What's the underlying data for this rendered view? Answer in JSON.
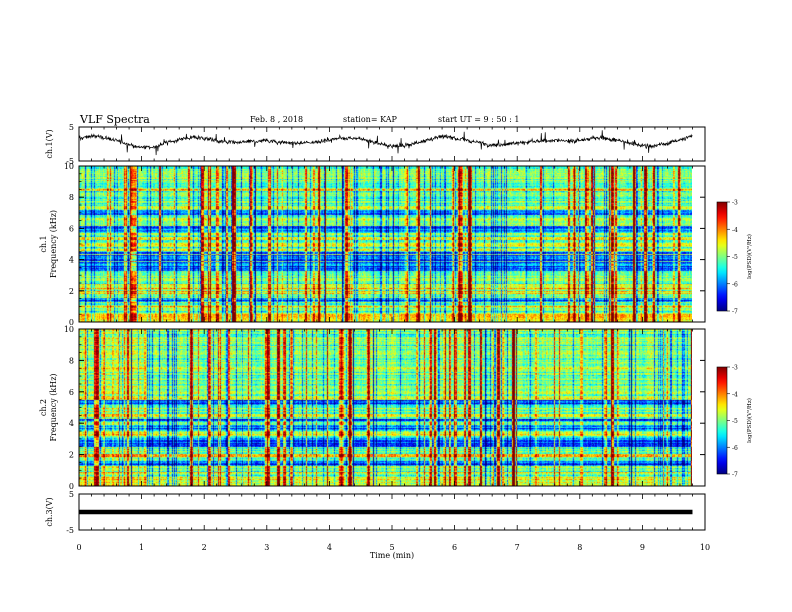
{
  "header": {
    "title": "VLF Spectra",
    "date": "Feb. 8 , 2018",
    "station": "station= KAP",
    "start": "start  UT =   9 : 50 : 1"
  },
  "chart_data": [
    {
      "type": "line",
      "name": "ch1-waveform",
      "ylabel": "ch.1(V)",
      "ylim": [
        -5,
        5
      ],
      "yticks": [
        "5",
        "-5"
      ],
      "xlim": [
        0,
        10
      ],
      "description_values": {
        "mean": 0.5,
        "amplitude": 1.8,
        "slow_cycles": 6
      }
    },
    {
      "type": "heatmap",
      "name": "ch1-spectrogram",
      "ylabel_top": "ch.1",
      "ylabel": "Frequency (kHz)",
      "ylim": [
        0,
        10
      ],
      "yticks": [
        "0",
        "2",
        "4",
        "6",
        "8",
        "10"
      ],
      "xlim": [
        0,
        9.8
      ],
      "strong_bands_khz": [
        1.0,
        1.9,
        2.2,
        2.4,
        3.7,
        4.6,
        5.0,
        5.4,
        6.6,
        7.4,
        8.5
      ],
      "colorbar": {
        "label": "log(PSD)(V²/Hz)",
        "min": -7,
        "max": -3,
        "ticks": [
          "-3",
          "-4",
          "-5",
          "-6",
          "-7"
        ]
      }
    },
    {
      "type": "heatmap",
      "name": "ch2-spectrogram",
      "ylabel_top": "ch.2",
      "ylabel": "Frequency (kHz)",
      "ylim": [
        0,
        10
      ],
      "yticks": [
        "0",
        "2",
        "4",
        "6",
        "8",
        "10"
      ],
      "xlim": [
        0,
        9.8
      ],
      "strong_bands_khz": [
        0.8,
        1.9,
        2.0,
        3.3,
        3.5,
        4.5,
        5.7,
        7.6
      ],
      "colorbar": {
        "label": "log(PSD)(V²/Hz)",
        "min": -7,
        "max": -3,
        "ticks": [
          "-3",
          "-4",
          "-5",
          "-6",
          "-7"
        ]
      }
    },
    {
      "type": "line",
      "name": "ch3-waveform",
      "ylabel": "ch.3(V)",
      "ylim": [
        -5,
        5
      ],
      "yticks": [
        "5",
        "-5"
      ],
      "xlim": [
        0,
        10
      ],
      "constant_value": 0,
      "xlabel": "Time (min)",
      "xticks": [
        "0",
        "1",
        "2",
        "3",
        "4",
        "5",
        "6",
        "7",
        "8",
        "9",
        "10"
      ]
    }
  ]
}
